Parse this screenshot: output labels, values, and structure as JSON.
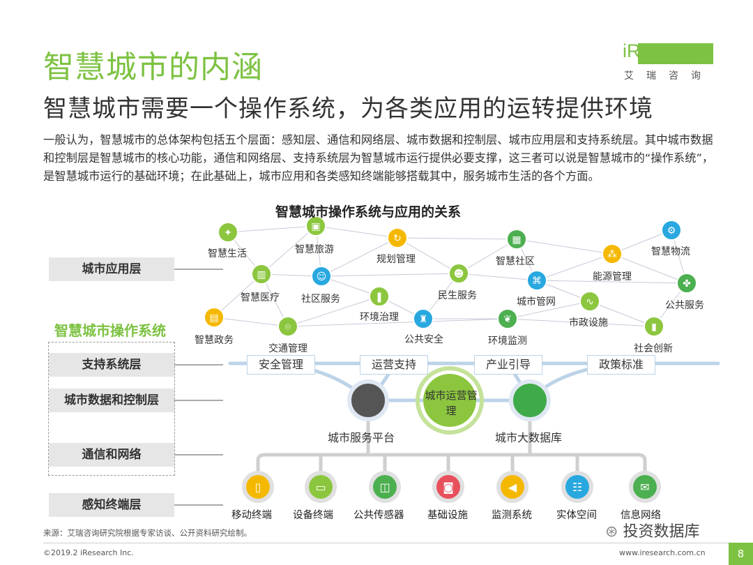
{
  "header": {
    "title": "智慧城市的内涵",
    "subtitle": "智慧城市需要一个操作系统，为各类应用的运转提供环境",
    "logo_text": "iResearch",
    "logo_sub": "艾瑞咨询"
  },
  "body_text": "一般认为，智慧城市的总体架构包括五个层面：感知层、通信和网络层、城市数据和控制层、城市应用层和支持系统层。其中城市数据和控制层是智慧城市的核心功能，通信和网络层、支持系统层为智慧城市运行提供必要支撑，这三者可以说是智慧城市的“操作系统”，是智慧城市运行的基础环境；在此基础上，城市应用和各类感知终端能够搭载其中，服务城市生活的各个方面。",
  "diagram": {
    "title": "智慧城市操作系统与应用的关系",
    "os_title": "智慧城市操作系统",
    "layers": {
      "app": "城市应用层",
      "support": "支持系统层",
      "data": "城市数据和控制层",
      "network": "通信和网络",
      "sensor": "感知终端层"
    },
    "apps": [
      {
        "label": "智慧生活",
        "icon": "lightbulb-icon",
        "color": "#8cc63f"
      },
      {
        "label": "智慧旅游",
        "icon": "gift-box-icon",
        "color": "#8cc63f"
      },
      {
        "label": "规划管理",
        "icon": "refresh-icon",
        "color": "#f5b800"
      },
      {
        "label": "智慧社区",
        "icon": "building-icon",
        "color": "#4caf50"
      },
      {
        "label": "能源管理",
        "icon": "nodes-icon",
        "color": "#f5b800"
      },
      {
        "label": "智慧物流",
        "icon": "gear-icon",
        "color": "#29a8e0"
      },
      {
        "label": "智慧医疗",
        "icon": "city-icon",
        "color": "#8cc63f"
      },
      {
        "label": "社区服务",
        "icon": "user-group-icon",
        "color": "#29a8e0"
      },
      {
        "label": "民生服务",
        "icon": "people-icon",
        "color": "#8cc63f"
      },
      {
        "label": "城市管网",
        "icon": "network-icon",
        "color": "#29a8e0"
      },
      {
        "label": "公共服务",
        "icon": "handshake-icon",
        "color": "#4caf50"
      },
      {
        "label": "智慧政务",
        "icon": "document-icon",
        "color": "#f5b800"
      },
      {
        "label": "环境治理",
        "icon": "bottle-icon",
        "color": "#8cc63f"
      },
      {
        "label": "公共安全",
        "icon": "extinguisher-icon",
        "color": "#29a8e0"
      },
      {
        "label": "市政设施",
        "icon": "pulse-icon",
        "color": "#8cc63f"
      },
      {
        "label": "交通管理",
        "icon": "location-icon",
        "color": "#8cc63f"
      },
      {
        "label": "环境监测",
        "icon": "leaf-icon",
        "color": "#4caf50"
      },
      {
        "label": "社会创新",
        "icon": "bar-chart-icon",
        "color": "#8cc63f"
      }
    ],
    "support": [
      "安全管理",
      "运营支持",
      "产业引导",
      "政策标准"
    ],
    "core": {
      "center": "城市运营管理",
      "left": "城市服务平台",
      "right": "城市大数据库"
    },
    "terminals": [
      {
        "label": "移动终端",
        "icon": "mobile-icon",
        "color": "#f5b800"
      },
      {
        "label": "设备终端",
        "icon": "laptop-icon",
        "color": "#8cc63f"
      },
      {
        "label": "公共传感器",
        "icon": "monitor-icon",
        "color": "#4caf50"
      },
      {
        "label": "基础设施",
        "icon": "phone-icon",
        "color": "#e8505b"
      },
      {
        "label": "监测系统",
        "icon": "megaphone-icon",
        "color": "#f5b800"
      },
      {
        "label": "实体空间",
        "icon": "users-icon",
        "color": "#29a8e0"
      },
      {
        "label": "信息网络",
        "icon": "mail-icon",
        "color": "#4caf50"
      }
    ]
  },
  "footer": {
    "source": "来源：艾瑞咨询研究院根据专家访谈、公开资料研究绘制。",
    "copyright": "©2019.2 iResearch Inc.",
    "website": "www.iresearch.com.cn",
    "page": "8",
    "watermark": "投资数据库"
  }
}
